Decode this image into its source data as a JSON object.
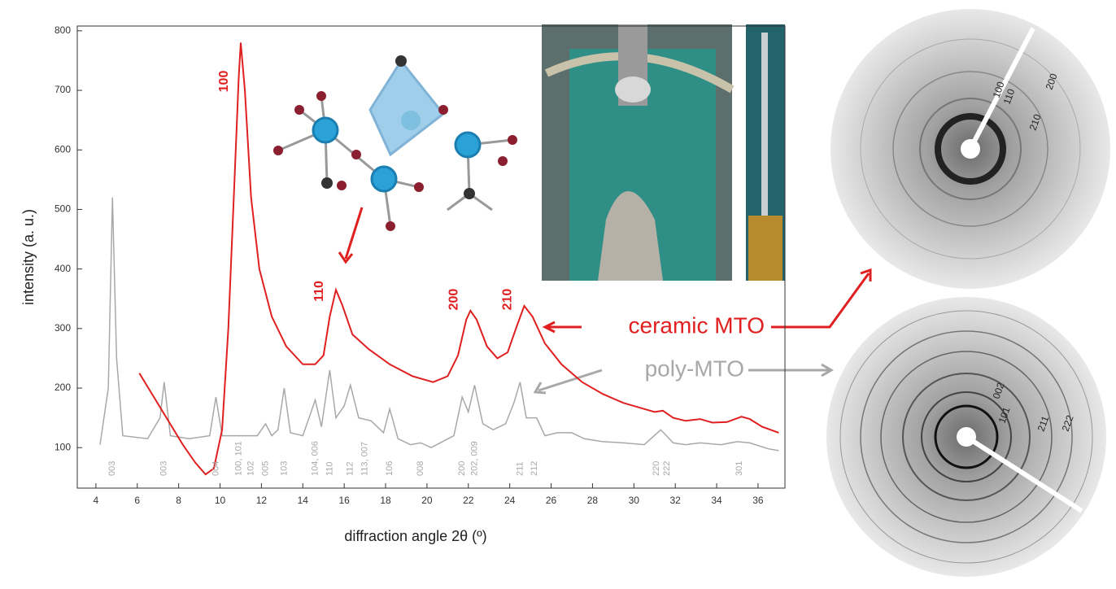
{
  "chart_data": {
    "type": "line",
    "xlabel": "diffraction angle 2θ (º)",
    "ylabel": "intensity (a. u.)",
    "xlim": [
      3.1,
      37.3
    ],
    "ylim": [
      32,
      808
    ],
    "xticks": [
      4,
      6,
      8,
      10,
      12,
      14,
      16,
      18,
      20,
      22,
      24,
      26,
      28,
      30,
      32,
      34,
      36
    ],
    "yticks": [
      100,
      200,
      300,
      400,
      500,
      600,
      700,
      800
    ],
    "series": [
      {
        "name": "ceramic MTO",
        "color": "#e02020",
        "x": [
          6.1,
          6.8,
          7.5,
          8.2,
          8.8,
          9.3,
          9.7,
          10.1,
          10.4,
          10.7,
          10.9,
          11.0,
          11.2,
          11.5,
          11.9,
          12.5,
          13.2,
          14.0,
          14.6,
          15.0,
          15.3,
          15.6,
          15.9,
          16.4,
          17.2,
          18.2,
          19.3,
          20.3,
          21.0,
          21.5,
          21.9,
          22.1,
          22.4,
          22.9,
          23.4,
          23.9,
          24.3,
          24.7,
          25.1,
          25.7,
          26.5,
          27.5,
          28.5,
          29.5,
          30.5,
          31.0,
          31.4,
          31.9,
          32.5,
          33.2,
          33.8,
          34.5,
          35.2,
          35.6,
          36.2,
          37.0
        ],
        "values": [
          225,
          185,
          145,
          105,
          75,
          55,
          65,
          130,
          300,
          550,
          720,
          780,
          700,
          520,
          400,
          320,
          270,
          240,
          240,
          255,
          320,
          365,
          340,
          290,
          265,
          240,
          220,
          210,
          220,
          255,
          315,
          330,
          315,
          270,
          250,
          260,
          300,
          338,
          320,
          275,
          240,
          210,
          190,
          175,
          165,
          160,
          162,
          150,
          145,
          148,
          142,
          143,
          152,
          148,
          135,
          125
        ]
      },
      {
        "name": "poly-MTO",
        "color": "#a8a8a8",
        "x": [
          4.2,
          4.6,
          4.8,
          5.0,
          5.3,
          6.5,
          7.1,
          7.3,
          7.6,
          8.5,
          9.5,
          9.8,
          10.1,
          10.6,
          11.3,
          11.8,
          12.2,
          12.5,
          12.8,
          13.1,
          13.4,
          14.0,
          14.6,
          14.9,
          15.3,
          15.6,
          16.0,
          16.3,
          16.7,
          17.3,
          17.9,
          18.2,
          18.6,
          19.2,
          19.7,
          20.2,
          21.3,
          21.7,
          22.0,
          22.3,
          22.7,
          23.2,
          23.8,
          24.2,
          24.5,
          24.8,
          25.3,
          25.7,
          26.3,
          27.0,
          27.6,
          28.5,
          29.5,
          30.5,
          31.3,
          31.9,
          32.5,
          33.2,
          34.2,
          35.0,
          35.6,
          36.5,
          37.0
        ],
        "values": [
          105,
          200,
          520,
          250,
          120,
          115,
          150,
          210,
          120,
          115,
          120,
          185,
          120,
          120,
          120,
          120,
          140,
          120,
          130,
          200,
          125,
          120,
          180,
          135,
          230,
          150,
          170,
          205,
          150,
          145,
          125,
          165,
          115,
          105,
          108,
          100,
          120,
          185,
          160,
          205,
          140,
          130,
          140,
          175,
          210,
          150,
          150,
          120,
          125,
          125,
          115,
          110,
          108,
          105,
          130,
          108,
          105,
          108,
          105,
          110,
          108,
          98,
          95
        ]
      }
    ],
    "peak_labels": [
      {
        "label": "100",
        "x": 11.0
      },
      {
        "label": "110",
        "x": 15.6
      },
      {
        "label": "200",
        "x": 22.1
      },
      {
        "label": "210",
        "x": 24.7
      }
    ],
    "reflection_labels": [
      {
        "label": "003",
        "x": 4.8
      },
      {
        "label": "003",
        "x": 7.3
      },
      {
        "label": "004",
        "x": 9.8
      },
      {
        "label": "100, 101",
        "x": 10.9
      },
      {
        "label": "102",
        "x": 11.5
      },
      {
        "label": "005",
        "x": 12.2
      },
      {
        "label": "103",
        "x": 13.1
      },
      {
        "label": "104, 006",
        "x": 14.6
      },
      {
        "label": "110",
        "x": 15.3
      },
      {
        "label": "112",
        "x": 16.3
      },
      {
        "label": "113, 007",
        "x": 17.0
      },
      {
        "label": "106",
        "x": 18.2
      },
      {
        "label": "008",
        "x": 19.7
      },
      {
        "label": "200",
        "x": 21.7
      },
      {
        "label": "202, 009",
        "x": 22.3
      },
      {
        "label": "211",
        "x": 24.5
      },
      {
        "label": "212",
        "x": 25.2
      },
      {
        "label": "220",
        "x": 31.1
      },
      {
        "label": "222",
        "x": 31.6
      },
      {
        "label": "301",
        "x": 35.1
      }
    ]
  },
  "diffraction_patterns": {
    "ceramic_labels": [
      "100",
      "110",
      "210",
      "200"
    ],
    "poly_labels": [
      "002",
      "101",
      "211",
      "222"
    ]
  }
}
